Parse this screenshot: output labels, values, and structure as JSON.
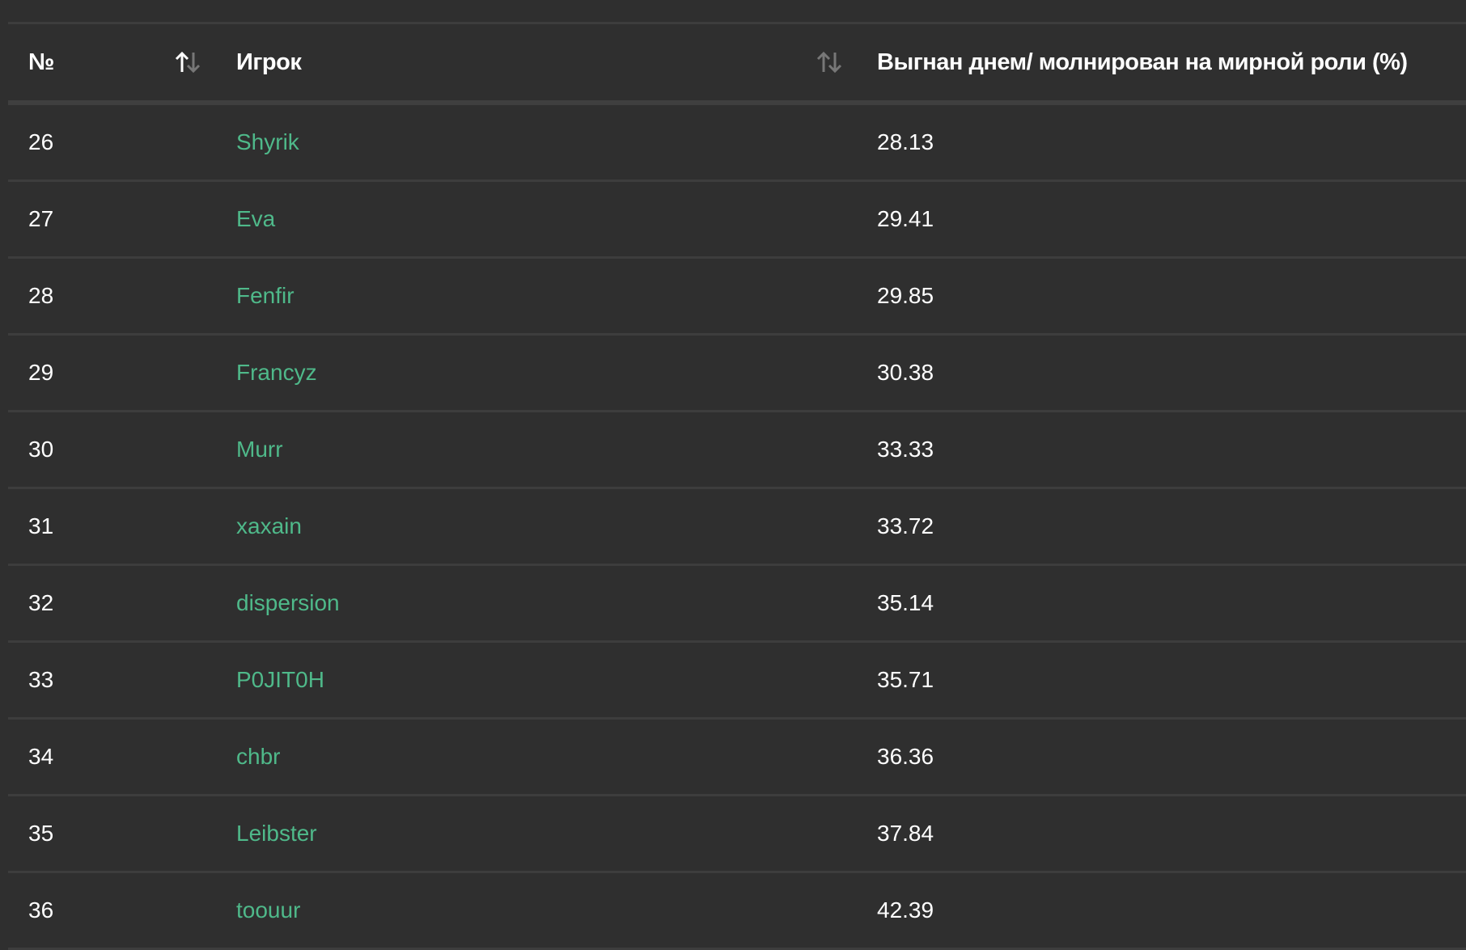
{
  "table": {
    "headers": {
      "number": "№",
      "player": "Игрок",
      "value": "Выгнан днем/ молнирован на мирной роли (%)"
    },
    "sort_state": {
      "number": "ascending",
      "player": "unsorted"
    },
    "link_color": "#4fb98a",
    "rows": [
      {
        "n": "26",
        "player": "Shyrik",
        "value": "28.13"
      },
      {
        "n": "27",
        "player": "Eva",
        "value": "29.41"
      },
      {
        "n": "28",
        "player": "Fenfir",
        "value": "29.85"
      },
      {
        "n": "29",
        "player": "Francyz",
        "value": "30.38"
      },
      {
        "n": "30",
        "player": "Murr",
        "value": "33.33"
      },
      {
        "n": "31",
        "player": "xaxain",
        "value": "33.72"
      },
      {
        "n": "32",
        "player": "dispersion",
        "value": "35.14"
      },
      {
        "n": "33",
        "player": "P0JIT0H",
        "value": "35.71"
      },
      {
        "n": "34",
        "player": "chbr",
        "value": "36.36"
      },
      {
        "n": "35",
        "player": "Leibster",
        "value": "37.84"
      },
      {
        "n": "36",
        "player": "toouur",
        "value": "42.39"
      }
    ]
  }
}
